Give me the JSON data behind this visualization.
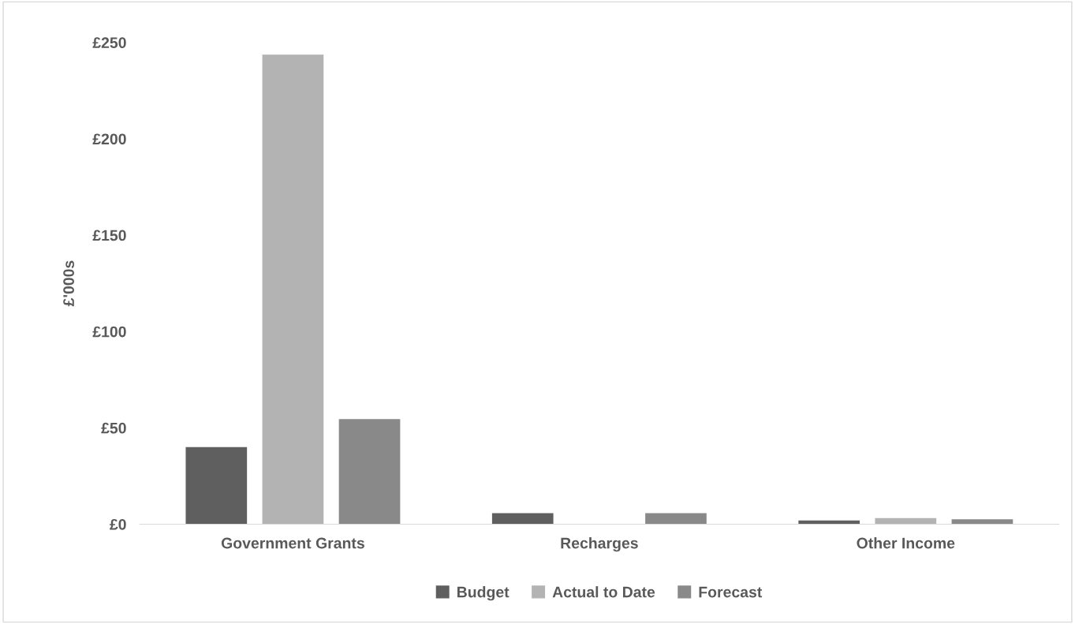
{
  "chart_data": {
    "type": "bar",
    "ylabel": "£'000s",
    "categories": [
      "Government Grants",
      "Recharges",
      "Other Income"
    ],
    "series": [
      {
        "name": "Budget",
        "color": "#5f5f5f",
        "values": [
          40,
          5.7,
          1.9
        ]
      },
      {
        "name": "Actual to Date",
        "color": "#b3b3b3",
        "values": [
          243.7,
          0,
          3.1
        ]
      },
      {
        "name": "Forecast",
        "color": "#898989",
        "values": [
          54.5,
          5.7,
          2.5
        ]
      }
    ],
    "ylim": [
      0,
      250
    ],
    "yticks": [
      {
        "value": 0,
        "label": "£0"
      },
      {
        "value": 50,
        "label": "£50"
      },
      {
        "value": 100,
        "label": "£100"
      },
      {
        "value": 150,
        "label": "£150"
      },
      {
        "value": 200,
        "label": "£200"
      },
      {
        "value": 250,
        "label": "£250"
      }
    ],
    "grid": false,
    "legend": "bottom"
  }
}
